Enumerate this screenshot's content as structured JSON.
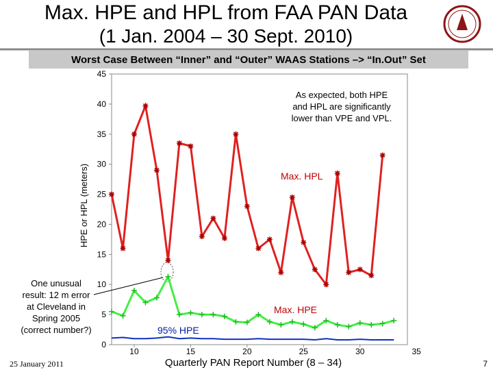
{
  "slide": {
    "title_line1": "Max. HPE and HPL from FAA PAN Data",
    "title_line2": "(1 Jan. 2004 – 30 Sept. 2010)",
    "subtitle": "Worst Case Between “Inner” and “Outer” WAAS Stations –> “In.Out” Set",
    "footer_date": "25 January 2011",
    "page_number": "7"
  },
  "chart_data": {
    "type": "line",
    "xlabel": "Quarterly PAN Report Number (8 – 34)",
    "ylabel": "HPE or HPL (meters)",
    "x": [
      8,
      9,
      10,
      11,
      12,
      13,
      14,
      15,
      16,
      17,
      18,
      19,
      20,
      21,
      22,
      23,
      24,
      25,
      26,
      27,
      28,
      29,
      30,
      31,
      32,
      33
    ],
    "xlim": [
      8,
      34.2
    ],
    "ylim": [
      0,
      45
    ],
    "xticks": [
      10,
      15,
      20,
      25,
      30,
      35
    ],
    "yticks": [
      0,
      5,
      10,
      15,
      20,
      25,
      30,
      35,
      40,
      45
    ],
    "series": [
      {
        "name": "Max. HPL",
        "color": "#e02020",
        "marker": "star",
        "values": [
          25,
          16,
          35,
          39.7,
          29,
          14,
          33.5,
          33,
          18,
          21,
          17.7,
          35,
          23,
          16,
          17.5,
          12,
          24.5,
          17,
          12.5,
          10,
          28.5,
          12,
          12.5,
          11.5,
          31.5,
          null
        ]
      },
      {
        "name": "Max. HPE",
        "color": "#44ee44",
        "marker": "plus",
        "values": [
          5.5,
          4.8,
          9,
          7,
          7.8,
          11.3,
          5,
          5.3,
          5,
          5,
          4.7,
          3.8,
          3.7,
          5,
          3.8,
          3.3,
          3.8,
          3.4,
          2.8,
          4,
          3.3,
          3,
          3.6,
          3.3,
          3.5,
          4
        ]
      },
      {
        "name": "95% HPE",
        "color": "#1030c0",
        "marker": "none",
        "values": [
          1.1,
          1.2,
          1.0,
          1.0,
          1.1,
          1.3,
          1.0,
          1.1,
          1.0,
          1.0,
          0.9,
          0.9,
          0.9,
          1.0,
          0.9,
          0.9,
          0.9,
          0.9,
          0.8,
          1.0,
          0.8,
          0.8,
          0.9,
          0.8,
          0.8,
          0.8
        ]
      }
    ],
    "annotations": [
      "As expected, both HPE and HPL are significantly lower than VPE and VPL.",
      "One unusual result: 12 m error at Cleveland in Spring 2005 (correct number?)"
    ]
  }
}
